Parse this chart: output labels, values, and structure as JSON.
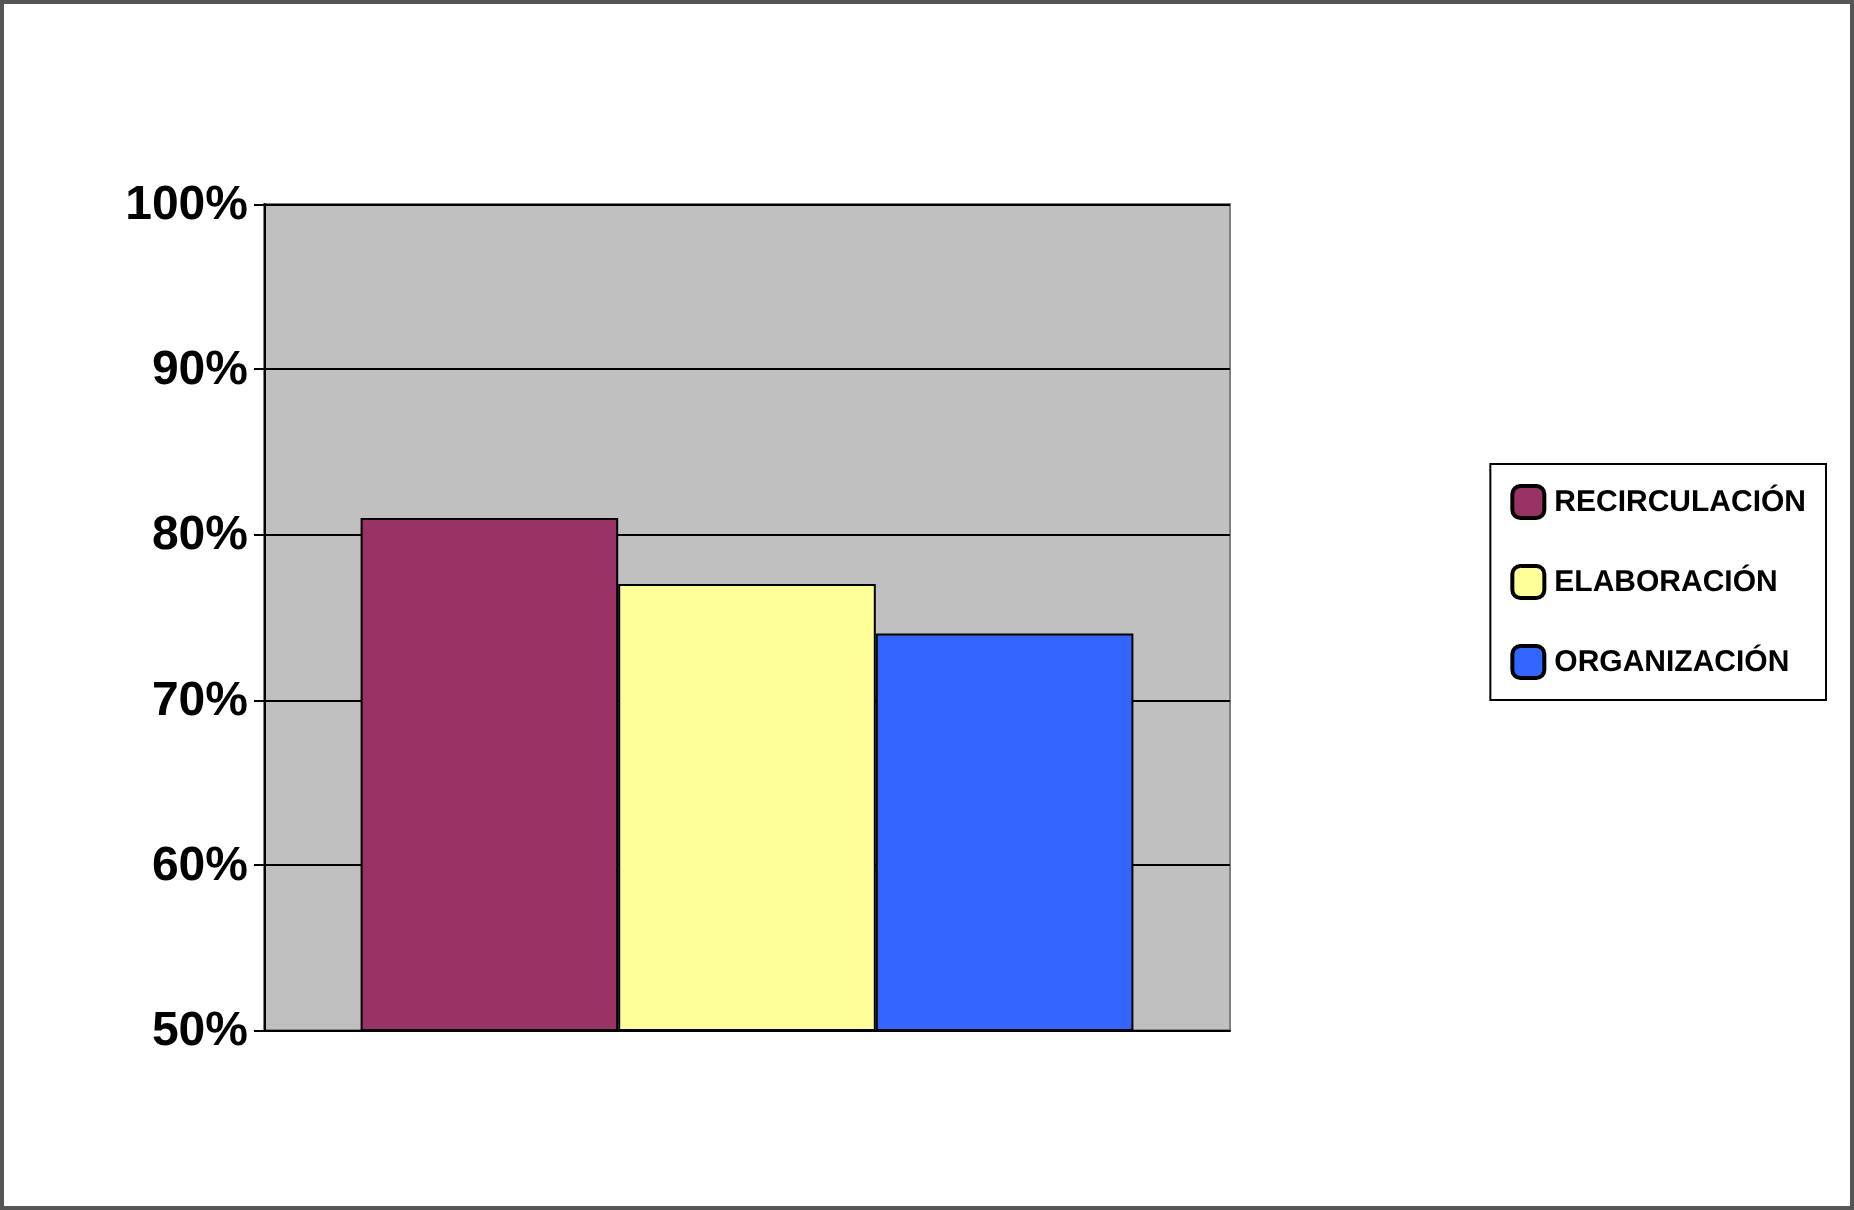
{
  "chart_data": {
    "type": "bar",
    "categories": [
      null
    ],
    "series": [
      {
        "name": "RECIRCULACIÓN",
        "color": "#993366",
        "values": [
          81
        ]
      },
      {
        "name": "ELABORACIÓN",
        "color": "#ffff99",
        "values": [
          77
        ]
      },
      {
        "name": "ORGANIZACIÓN",
        "color": "#3366ff",
        "values": [
          74
        ]
      }
    ],
    "ylim": [
      50,
      100
    ],
    "yticks": [
      {
        "value": 50,
        "label": "50%"
      },
      {
        "value": 60,
        "label": "60%"
      },
      {
        "value": 70,
        "label": "70%"
      },
      {
        "value": 80,
        "label": "80%"
      },
      {
        "value": 90,
        "label": "90%"
      },
      {
        "value": 100,
        "label": "100%"
      }
    ],
    "grid": true,
    "legend": "right"
  }
}
